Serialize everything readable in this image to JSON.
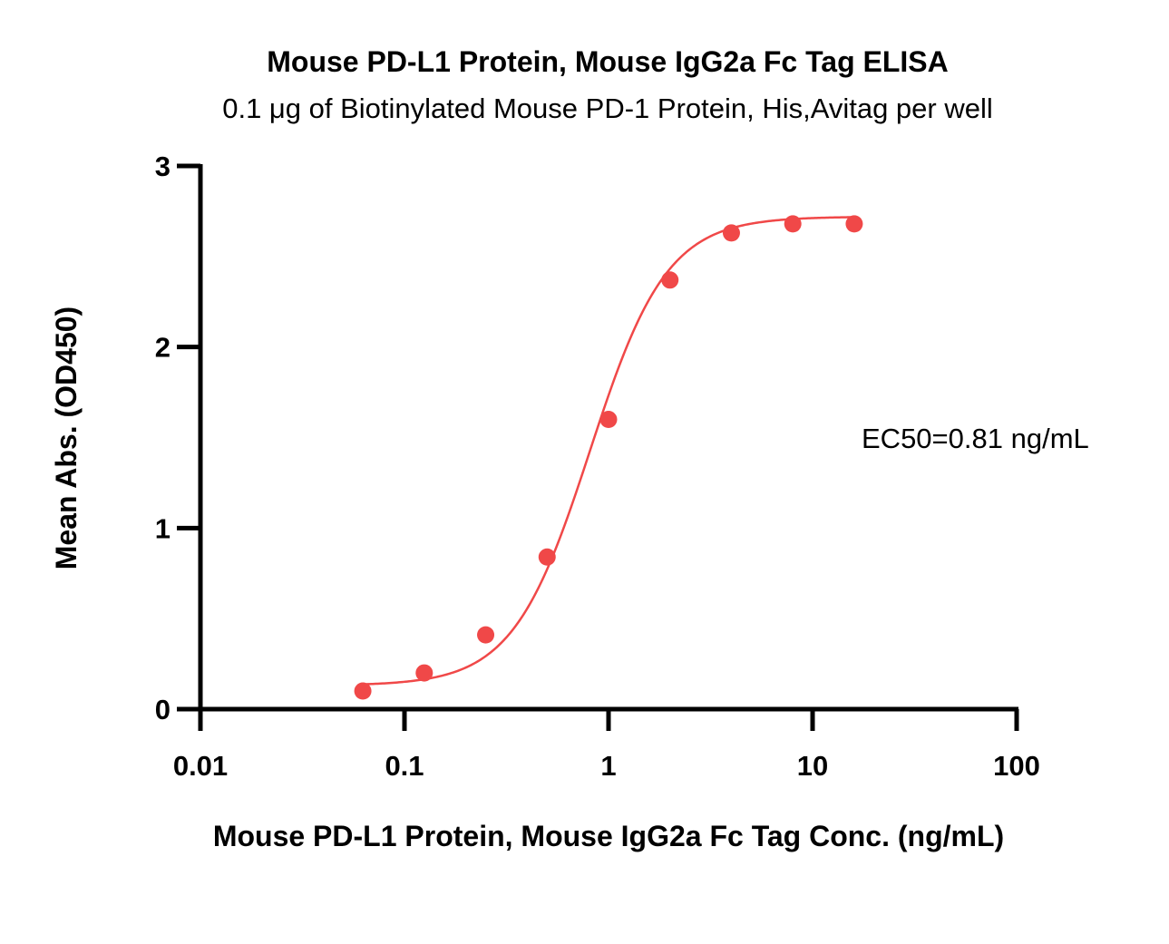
{
  "chart_data": {
    "type": "scatter",
    "title": "Mouse PD-L1 Protein, Mouse IgG2a Fc Tag ELISA",
    "subtitle": "0.1 μg of Biotinylated Mouse PD-1 Protein, His,Avitag per well",
    "xlabel": "Mouse PD-L1 Protein, Mouse IgG2a Fc Tag Conc. (ng/mL)",
    "ylabel": "Mean Abs. (OD450)",
    "x_scale": "log",
    "xlim": [
      0.01,
      100
    ],
    "ylim": [
      0,
      3
    ],
    "x_ticks": [
      0.01,
      0.1,
      1,
      10,
      100
    ],
    "x_tick_labels": [
      "0.01",
      "0.1",
      "1",
      "10",
      "100"
    ],
    "y_ticks": [
      0,
      1,
      2,
      3
    ],
    "y_tick_labels": [
      "0",
      "1",
      "2",
      "3"
    ],
    "grid": false,
    "legend": "none",
    "series": [
      {
        "color": "#f04848",
        "x": [
          0.0625,
          0.125,
          0.25,
          0.5,
          1,
          2,
          4,
          8,
          16
        ],
        "y": [
          0.1,
          0.2,
          0.41,
          0.84,
          1.6,
          2.37,
          2.63,
          2.68,
          2.68
        ]
      }
    ],
    "fit_curve": {
      "model": "4PL",
      "bottom": 0.13,
      "top": 2.72,
      "ec50": 0.81,
      "hill": 2.3,
      "x_range": [
        0.0625,
        16
      ],
      "color": "#f04848"
    },
    "annotation": "EC50=0.81 ng/mL"
  }
}
